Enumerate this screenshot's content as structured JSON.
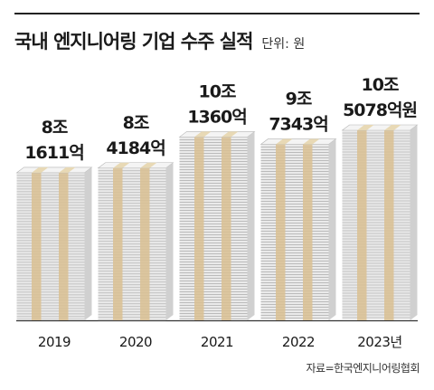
{
  "header": {
    "title": "국내 엔지니어링 기업 수주 실적",
    "unit": "단위: 원"
  },
  "source": "자료=한국엔지니어링협회",
  "colors": {
    "paper_light": "#eaeaea",
    "paper_dark": "#b4b4b4",
    "band": "#d9c092",
    "band_light": "#e8d9b5",
    "baseline": "#333333"
  },
  "chart_data": {
    "type": "bar",
    "title": "국내 엔지니어링 기업 수주 실적",
    "unit": "단위: 원",
    "categories": [
      "2019",
      "2020",
      "2021",
      "2022",
      "2023년"
    ],
    "values": [
      81611,
      84184,
      101360,
      97343,
      105078
    ],
    "value_unit": "억원",
    "data_labels": [
      {
        "line1": "8조",
        "line2": "1611억"
      },
      {
        "line1": "8조",
        "line2": "4184억"
      },
      {
        "line1": "10조",
        "line2": "1360억"
      },
      {
        "line1": "9조",
        "line2": "7343억"
      },
      {
        "line1": "10조",
        "line2": "5078억원"
      }
    ],
    "ylim": [
      0,
      110000
    ],
    "legend": "none",
    "grid": false
  }
}
